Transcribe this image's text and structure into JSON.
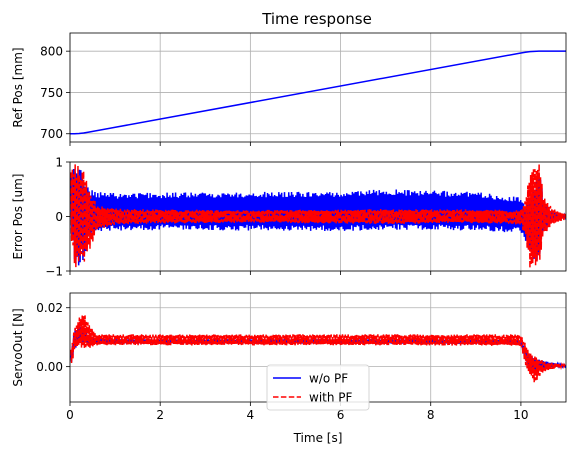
{
  "chart_data": [
    {
      "type": "line",
      "title": "Time response",
      "xlabel": "",
      "ylabel": "Ref Pos [mm]",
      "xlim": [
        0,
        11
      ],
      "ylim": [
        690,
        822
      ],
      "x_ticks": [
        0,
        2,
        4,
        6,
        8,
        10
      ],
      "x_tick_labels": [
        "",
        "",
        "",
        "",
        "",
        ""
      ],
      "y_ticks": [
        700,
        750,
        800
      ],
      "y_tick_labels": [
        "700",
        "750",
        "800"
      ],
      "grid": true,
      "series": [
        {
          "color": "#0000ff",
          "dash": "solid",
          "x": [
            0,
            0.1,
            0.2,
            0.3,
            0.4,
            10.0,
            10.1,
            10.2,
            10.3,
            10.4,
            11
          ],
          "y": [
            700,
            700,
            700.3,
            700.9,
            701.8,
            797.8,
            798.7,
            799.4,
            799.8,
            800,
            800
          ]
        }
      ]
    },
    {
      "type": "line",
      "title": "",
      "xlabel": "",
      "ylabel": "Error Pos [um]",
      "xlim": [
        0,
        11
      ],
      "ylim": [
        -1,
        1
      ],
      "x_ticks": [
        0,
        2,
        4,
        6,
        8,
        10
      ],
      "x_tick_labels": [
        "",
        "",
        "",
        "",
        "",
        ""
      ],
      "y_ticks": [
        -1,
        0,
        1
      ],
      "y_tick_labels": [
        "−1",
        "0",
        "1"
      ],
      "grid": true,
      "series": [
        {
          "color": "#0000ff",
          "dash": "solid",
          "x": [
            0.02,
            0.1,
            0.2,
            0.3,
            0.45,
            0.6,
            1.0,
            2.0,
            4.0,
            6.0,
            7.0,
            8.0,
            9.0,
            10.0,
            10.1,
            10.2,
            10.3,
            10.4,
            10.5,
            10.7,
            11.0
          ],
          "y_upper": [
            0.9,
            1.0,
            0.95,
            0.8,
            0.5,
            0.45,
            0.43,
            0.44,
            0.45,
            0.46,
            0.5,
            0.48,
            0.45,
            0.35,
            0.2,
            0.4,
            0.6,
            0.95,
            0.3,
            0.1,
            0.02
          ],
          "y_lower": [
            -0.3,
            -0.9,
            -0.9,
            -0.8,
            -0.35,
            -0.28,
            -0.26,
            -0.25,
            -0.26,
            -0.27,
            -0.25,
            -0.25,
            -0.26,
            -0.3,
            -0.45,
            -0.7,
            -0.9,
            -0.8,
            -0.3,
            -0.1,
            -0.02
          ]
        },
        {
          "color": "#ff0000",
          "dash": "dashed",
          "x": [
            0.02,
            0.1,
            0.2,
            0.3,
            0.45,
            0.6,
            1.0,
            2.0,
            4.0,
            6.0,
            7.0,
            8.0,
            9.0,
            10.0,
            10.1,
            10.2,
            10.3,
            10.4,
            10.5,
            10.7,
            11.0
          ],
          "y_upper": [
            1.0,
            1.0,
            1.0,
            0.9,
            0.5,
            0.2,
            0.15,
            0.13,
            0.12,
            0.13,
            0.14,
            0.13,
            0.13,
            0.12,
            0.3,
            0.9,
            1.0,
            1.0,
            0.4,
            0.15,
            0.05
          ],
          "y_lower": [
            -0.5,
            -1.0,
            -1.0,
            -0.95,
            -0.6,
            -0.25,
            -0.15,
            -0.13,
            -0.12,
            -0.13,
            -0.14,
            -0.13,
            -0.12,
            -0.15,
            -0.4,
            -1.0,
            -1.0,
            -1.0,
            -0.4,
            -0.15,
            -0.05
          ]
        }
      ]
    },
    {
      "type": "line",
      "title": "",
      "xlabel": "Time [s]",
      "ylabel": "ServoOut [N]",
      "xlim": [
        0,
        11
      ],
      "ylim": [
        -0.012,
        0.025
      ],
      "x_ticks": [
        0,
        2,
        4,
        6,
        8,
        10
      ],
      "x_tick_labels": [
        "0",
        "2",
        "4",
        "6",
        "8",
        "10"
      ],
      "y_ticks": [
        0,
        0.02
      ],
      "y_tick_labels": [
        "0.00",
        "0.02"
      ],
      "grid": true,
      "series": [
        {
          "name": "w/o PF",
          "color": "#0000ff",
          "dash": "solid",
          "x": [
            0.02,
            0.1,
            0.2,
            0.3,
            0.4,
            0.6,
            1.0,
            4.0,
            8.0,
            10.0,
            10.1,
            10.2,
            10.3,
            10.5,
            10.8,
            11.0
          ],
          "y_upper": [
            0.004,
            0.013,
            0.014,
            0.013,
            0.011,
            0.0095,
            0.0093,
            0.0093,
            0.0093,
            0.009,
            0.006,
            0.004,
            0.003,
            0.002,
            0.001,
            0.0005
          ],
          "y_lower": [
            0.0,
            0.006,
            0.007,
            0.008,
            0.0075,
            0.0078,
            0.0078,
            0.0078,
            0.0078,
            0.0075,
            0.002,
            -0.001,
            -0.002,
            -0.001,
            0.0,
            0.0
          ]
        },
        {
          "name": "with PF",
          "color": "#ff0000",
          "dash": "dashed",
          "x": [
            0.02,
            0.1,
            0.2,
            0.3,
            0.4,
            0.6,
            1.0,
            4.0,
            8.0,
            10.0,
            10.1,
            10.2,
            10.3,
            10.5,
            10.8,
            11.0
          ],
          "y_upper": [
            0.006,
            0.014,
            0.017,
            0.019,
            0.015,
            0.011,
            0.011,
            0.011,
            0.011,
            0.011,
            0.008,
            0.005,
            0.004,
            0.002,
            0.001,
            0.0005
          ],
          "y_lower": [
            -0.001,
            0.005,
            0.007,
            0.005,
            0.006,
            0.0072,
            0.0072,
            0.0072,
            0.0072,
            0.007,
            0.0,
            -0.003,
            -0.0055,
            -0.002,
            -0.0005,
            0.0
          ]
        }
      ],
      "legend": {
        "placement": "bottom-center",
        "entries": [
          {
            "label": "w/o PF",
            "color": "#0000ff",
            "dash": "solid"
          },
          {
            "label": "with PF",
            "color": "#ff0000",
            "dash": "dashed"
          }
        ]
      }
    }
  ]
}
